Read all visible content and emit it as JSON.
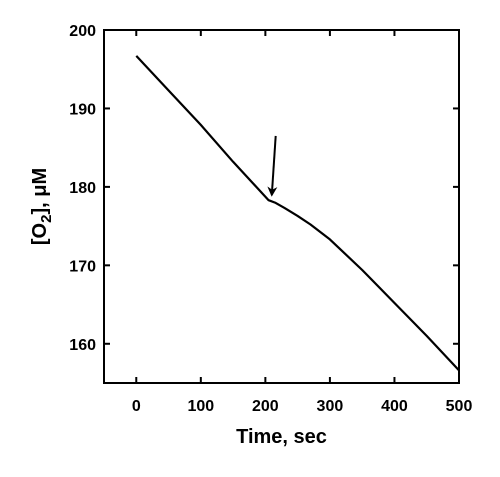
{
  "chart_data": {
    "type": "line",
    "title": "",
    "xlabel": "Time, sec",
    "ylabel": {
      "prefix": "[O",
      "subscript": "2",
      "suffix": "], μM"
    },
    "xlim": [
      -50,
      500
    ],
    "ylim": [
      155,
      200
    ],
    "xticks": [
      0,
      100,
      200,
      300,
      400,
      500
    ],
    "yticks": [
      160,
      170,
      180,
      190,
      200
    ],
    "grid": false,
    "legend": "none",
    "series": [
      {
        "x": [
          0,
          50,
          100,
          150,
          205,
          215,
          230,
          250,
          270,
          300,
          350,
          400,
          450,
          500
        ],
        "y": [
          196.7,
          192.3,
          187.9,
          183.2,
          178.3,
          178.0,
          177.3,
          176.3,
          175.2,
          173.3,
          169.4,
          165.2,
          161.0,
          156.6
        ]
      }
    ],
    "annotations": [
      {
        "type": "arrow",
        "x": 210,
        "y": 179.0,
        "from_x": 216,
        "from_y": 186.5
      }
    ],
    "line_color": "#000000"
  }
}
